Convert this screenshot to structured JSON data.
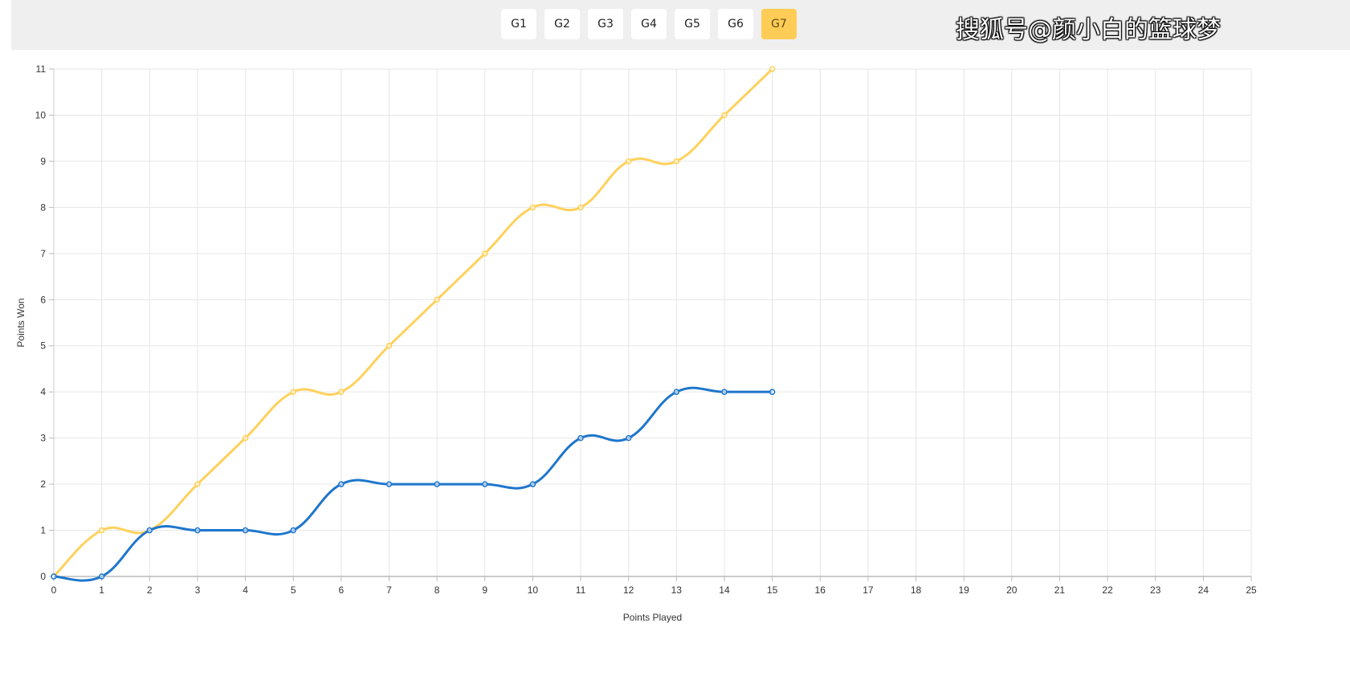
{
  "tabs": [
    {
      "label": "G1",
      "active": false
    },
    {
      "label": "G2",
      "active": false
    },
    {
      "label": "G3",
      "active": false
    },
    {
      "label": "G4",
      "active": false
    },
    {
      "label": "G5",
      "active": false
    },
    {
      "label": "G6",
      "active": false
    },
    {
      "label": "G7",
      "active": true
    }
  ],
  "watermark": "搜狐号@颜小白的篮球梦",
  "chart_data": {
    "type": "line",
    "title": "",
    "xlabel": "Points Played",
    "ylabel": "Points Won",
    "xlim": [
      0,
      25
    ],
    "ylim": [
      0,
      11
    ],
    "xticks": [
      0,
      1,
      2,
      3,
      4,
      5,
      6,
      7,
      8,
      9,
      10,
      11,
      12,
      13,
      14,
      15,
      16,
      17,
      18,
      19,
      20,
      21,
      22,
      23,
      24,
      25
    ],
    "yticks": [
      0,
      1,
      2,
      3,
      4,
      5,
      6,
      7,
      8,
      9,
      10,
      11
    ],
    "grid": true,
    "legend": "none",
    "series": [
      {
        "color": "#ffd15c",
        "x": [
          0,
          1,
          2,
          3,
          4,
          5,
          6,
          7,
          8,
          9,
          10,
          11,
          12,
          13,
          14,
          15
        ],
        "values": [
          0,
          1,
          1,
          2,
          3,
          4,
          4,
          5,
          6,
          7,
          8,
          8,
          9,
          9,
          10,
          11
        ]
      },
      {
        "color": "#1e76cc",
        "x": [
          0,
          1,
          2,
          3,
          4,
          5,
          6,
          7,
          8,
          9,
          10,
          11,
          12,
          13,
          14,
          15
        ],
        "values": [
          0,
          0,
          1,
          1,
          1,
          1,
          2,
          2,
          2,
          2,
          2,
          3,
          3,
          4,
          4,
          4
        ]
      }
    ]
  }
}
